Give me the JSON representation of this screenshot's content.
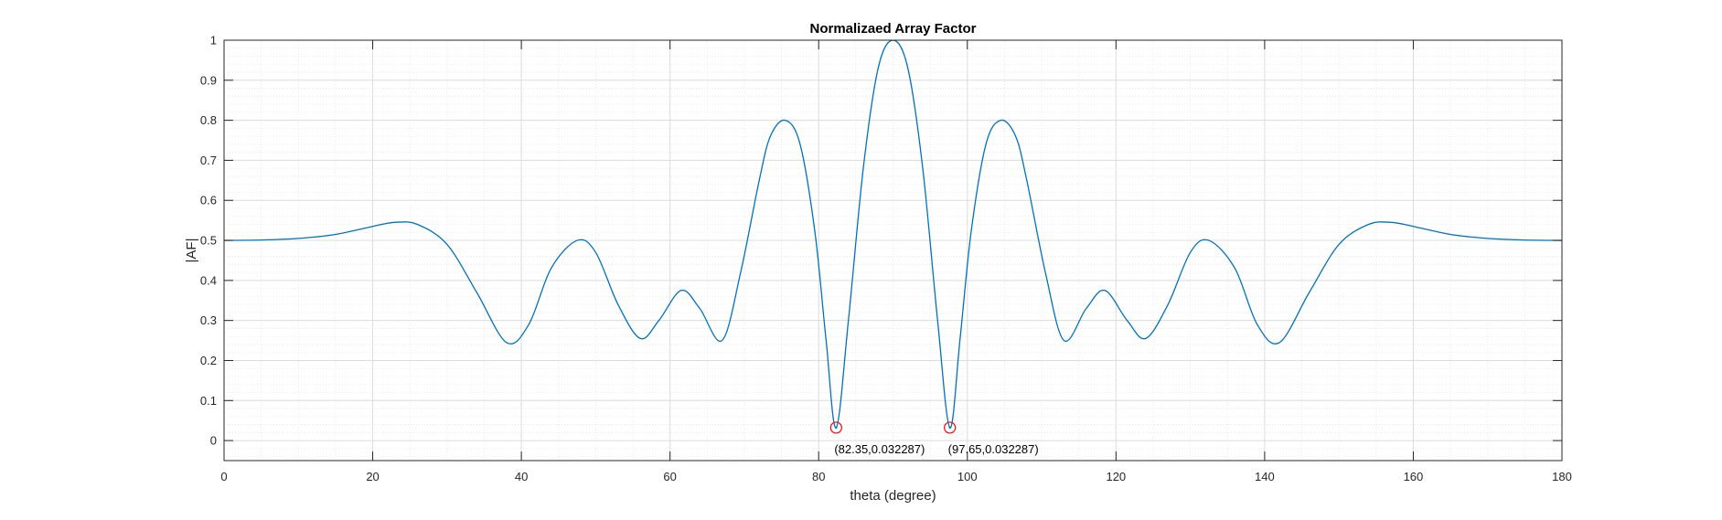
{
  "chart_data": {
    "type": "line",
    "title": "Normalizaed Array Factor",
    "xlabel": "theta (degree)",
    "ylabel": "|AF|",
    "xlim": [
      0,
      180
    ],
    "ylim": [
      -0.05,
      1
    ],
    "xticks": [
      0,
      20,
      40,
      60,
      80,
      100,
      120,
      140,
      160,
      180
    ],
    "yticks": [
      0,
      0.1,
      0.2,
      0.3,
      0.4,
      0.5,
      0.6,
      0.7,
      0.8,
      0.9,
      1
    ],
    "grid": true,
    "minor_grid": true,
    "line_color": "#0072BD",
    "marker_color": "#FF0000",
    "series": [
      {
        "x": [
          0,
          5,
          10,
          15,
          20,
          23,
          26,
          30,
          34,
          38,
          41,
          44,
          47.5,
          50,
          53,
          56,
          58.5,
          61.5,
          64,
          67,
          69.5,
          72,
          73.5,
          75.5,
          77.5,
          79.5,
          81,
          82.35,
          84,
          86,
          88,
          90,
          92,
          94,
          96,
          97.65,
          99,
          100.5,
          102.5,
          104.5,
          106.5,
          108,
          110.5,
          113,
          116,
          118.5,
          121.5,
          124,
          127,
          130,
          132.5,
          136,
          139,
          142,
          146,
          150,
          154,
          157,
          160,
          165,
          170,
          175,
          180
        ],
        "y": [
          0.5,
          0.501,
          0.505,
          0.515,
          0.535,
          0.545,
          0.54,
          0.49,
          0.37,
          0.245,
          0.29,
          0.43,
          0.5,
          0.47,
          0.34,
          0.255,
          0.3,
          0.375,
          0.33,
          0.25,
          0.42,
          0.65,
          0.76,
          0.8,
          0.74,
          0.52,
          0.25,
          0.032287,
          0.3,
          0.68,
          0.93,
          1.0,
          0.93,
          0.68,
          0.3,
          0.032287,
          0.25,
          0.52,
          0.74,
          0.8,
          0.76,
          0.65,
          0.42,
          0.25,
          0.33,
          0.375,
          0.3,
          0.255,
          0.34,
          0.47,
          0.5,
          0.43,
          0.29,
          0.245,
          0.37,
          0.49,
          0.54,
          0.545,
          0.535,
          0.515,
          0.505,
          0.501,
          0.5
        ]
      }
    ],
    "annotations": [
      {
        "x": 82.35,
        "y": 0.032287,
        "label": "(82.35,0.032287)"
      },
      {
        "x": 97.65,
        "y": 0.032287,
        "label": "(97.65,0.032287)"
      }
    ]
  }
}
